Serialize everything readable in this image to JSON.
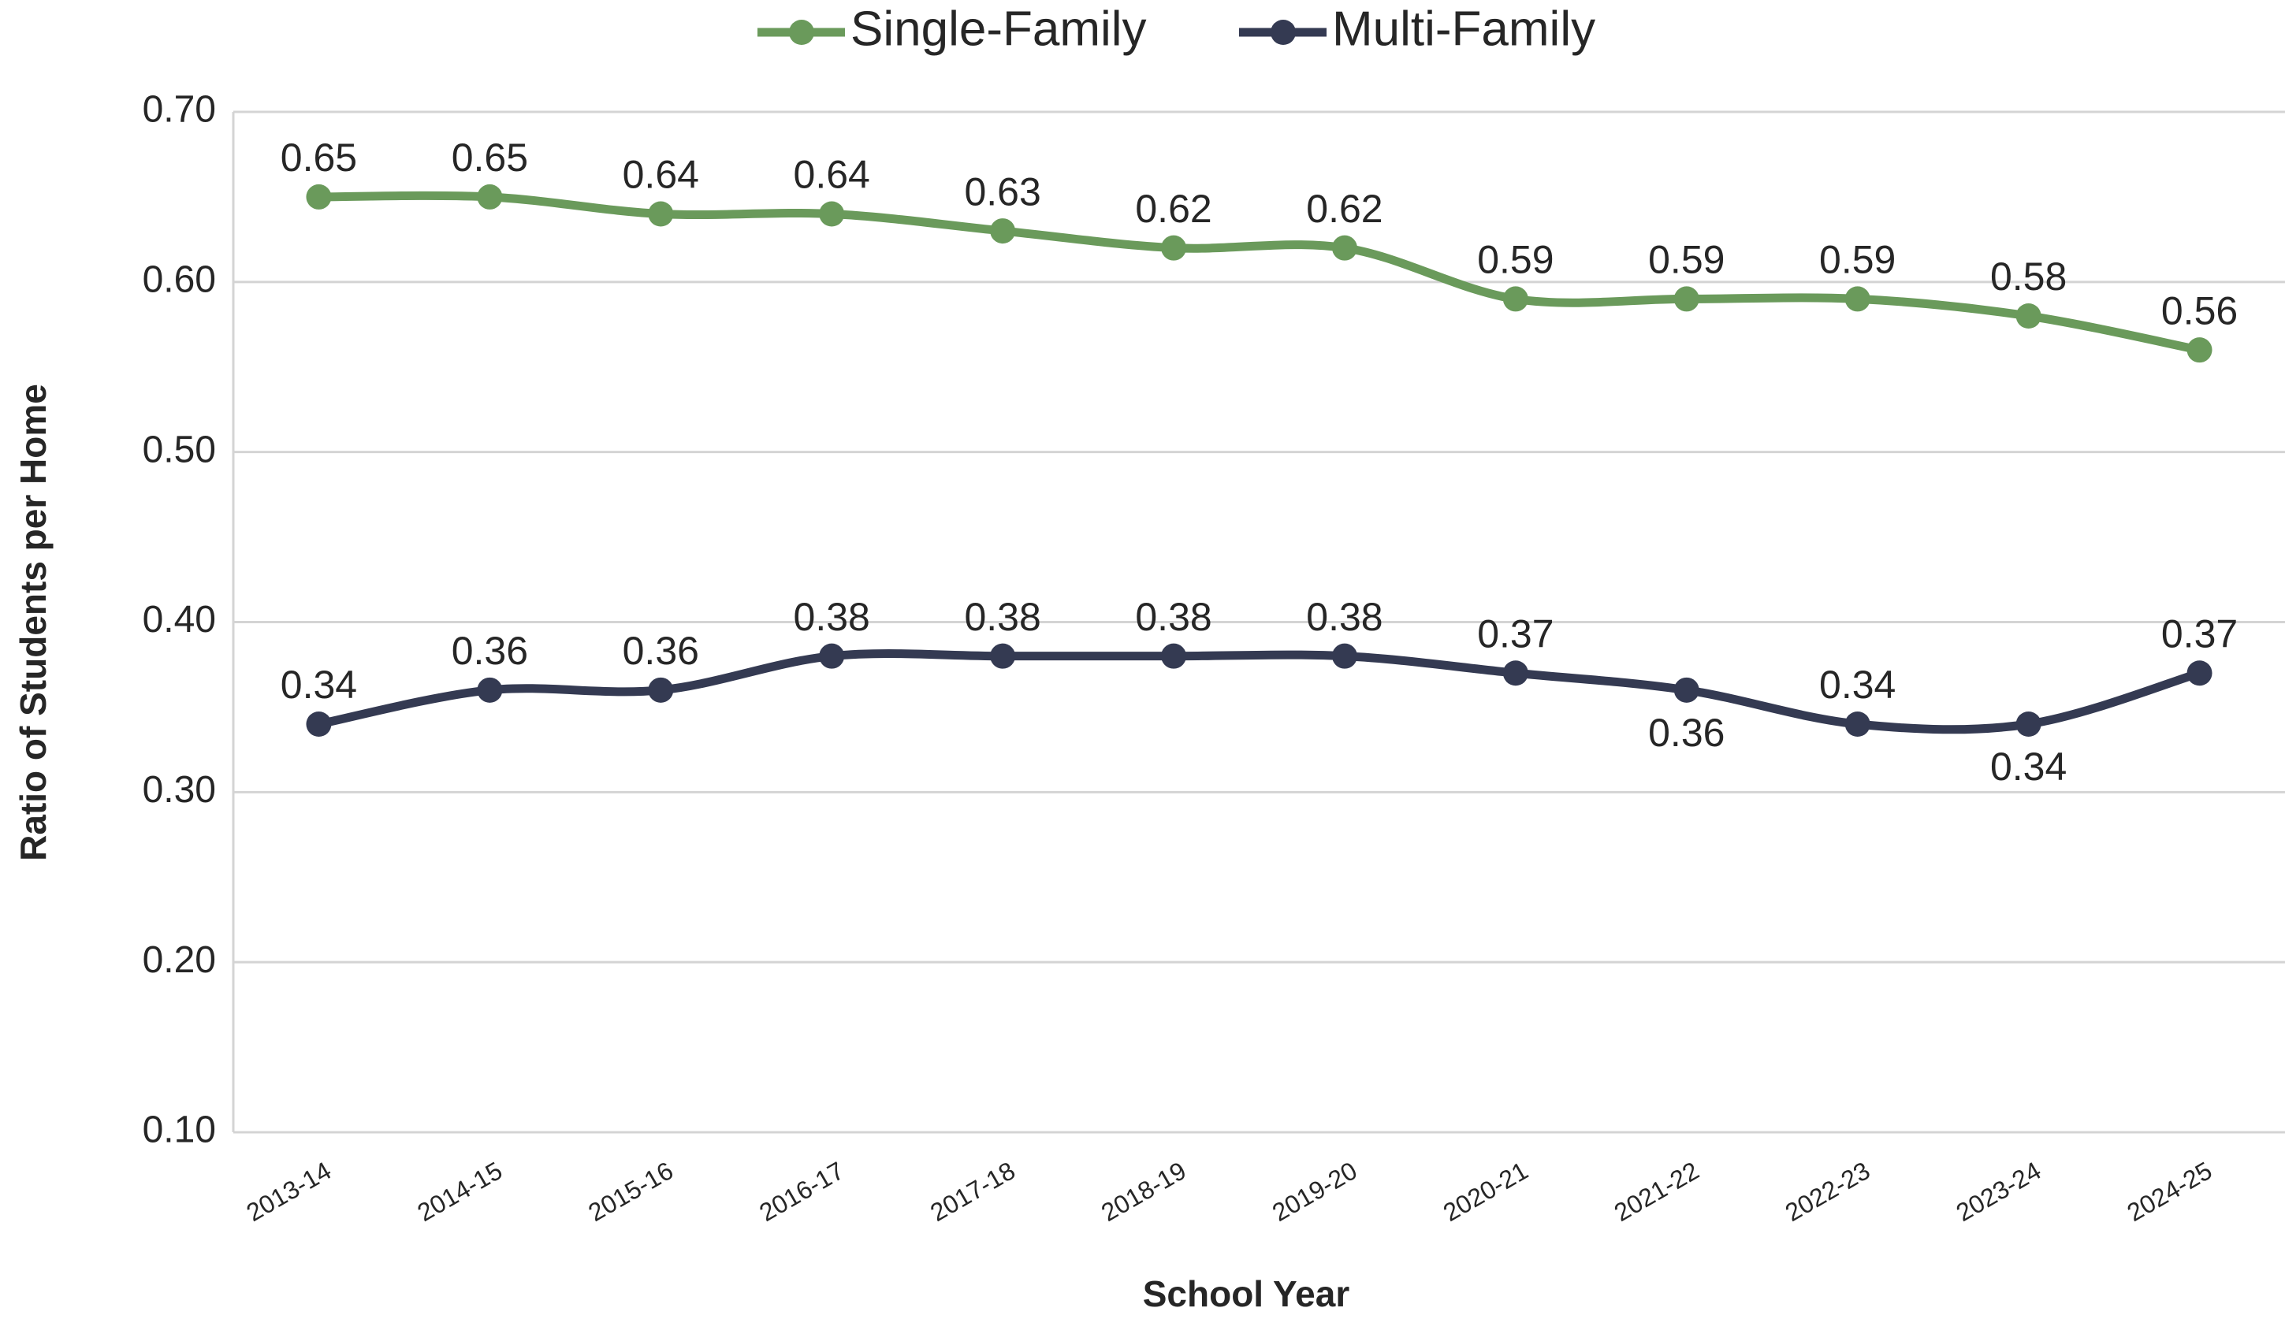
{
  "chart_data": {
    "type": "line",
    "x_label": "School Year",
    "y_label": "Ratio of Students per Home",
    "categories": [
      "2013-14",
      "2014-15",
      "2015-16",
      "2016-17",
      "2017-18",
      "2018-19",
      "2019-20",
      "2020-21",
      "2021-22",
      "2022-23",
      "2023-24",
      "2024-25"
    ],
    "series": [
      {
        "name": "Single-Family",
        "color": "#6a9a5b",
        "values": [
          0.65,
          0.65,
          0.64,
          0.64,
          0.63,
          0.62,
          0.62,
          0.59,
          0.59,
          0.59,
          0.58,
          0.56
        ]
      },
      {
        "name": "Multi-Family",
        "color": "#343a52",
        "values": [
          0.34,
          0.36,
          0.36,
          0.38,
          0.38,
          0.38,
          0.38,
          0.37,
          0.36,
          0.34,
          0.34,
          0.37
        ]
      }
    ],
    "ylim": [
      0.1,
      0.7
    ],
    "yticks": [
      {
        "value": 0.1,
        "label": "0.10"
      },
      {
        "value": 0.2,
        "label": "0.20"
      },
      {
        "value": 0.3,
        "label": "0.30"
      },
      {
        "value": 0.4,
        "label": "0.40"
      },
      {
        "value": 0.5,
        "label": "0.50"
      },
      {
        "value": 0.6,
        "label": "0.60"
      },
      {
        "value": 0.7,
        "label": "0.70"
      }
    ],
    "grid": true,
    "legend": "top"
  }
}
